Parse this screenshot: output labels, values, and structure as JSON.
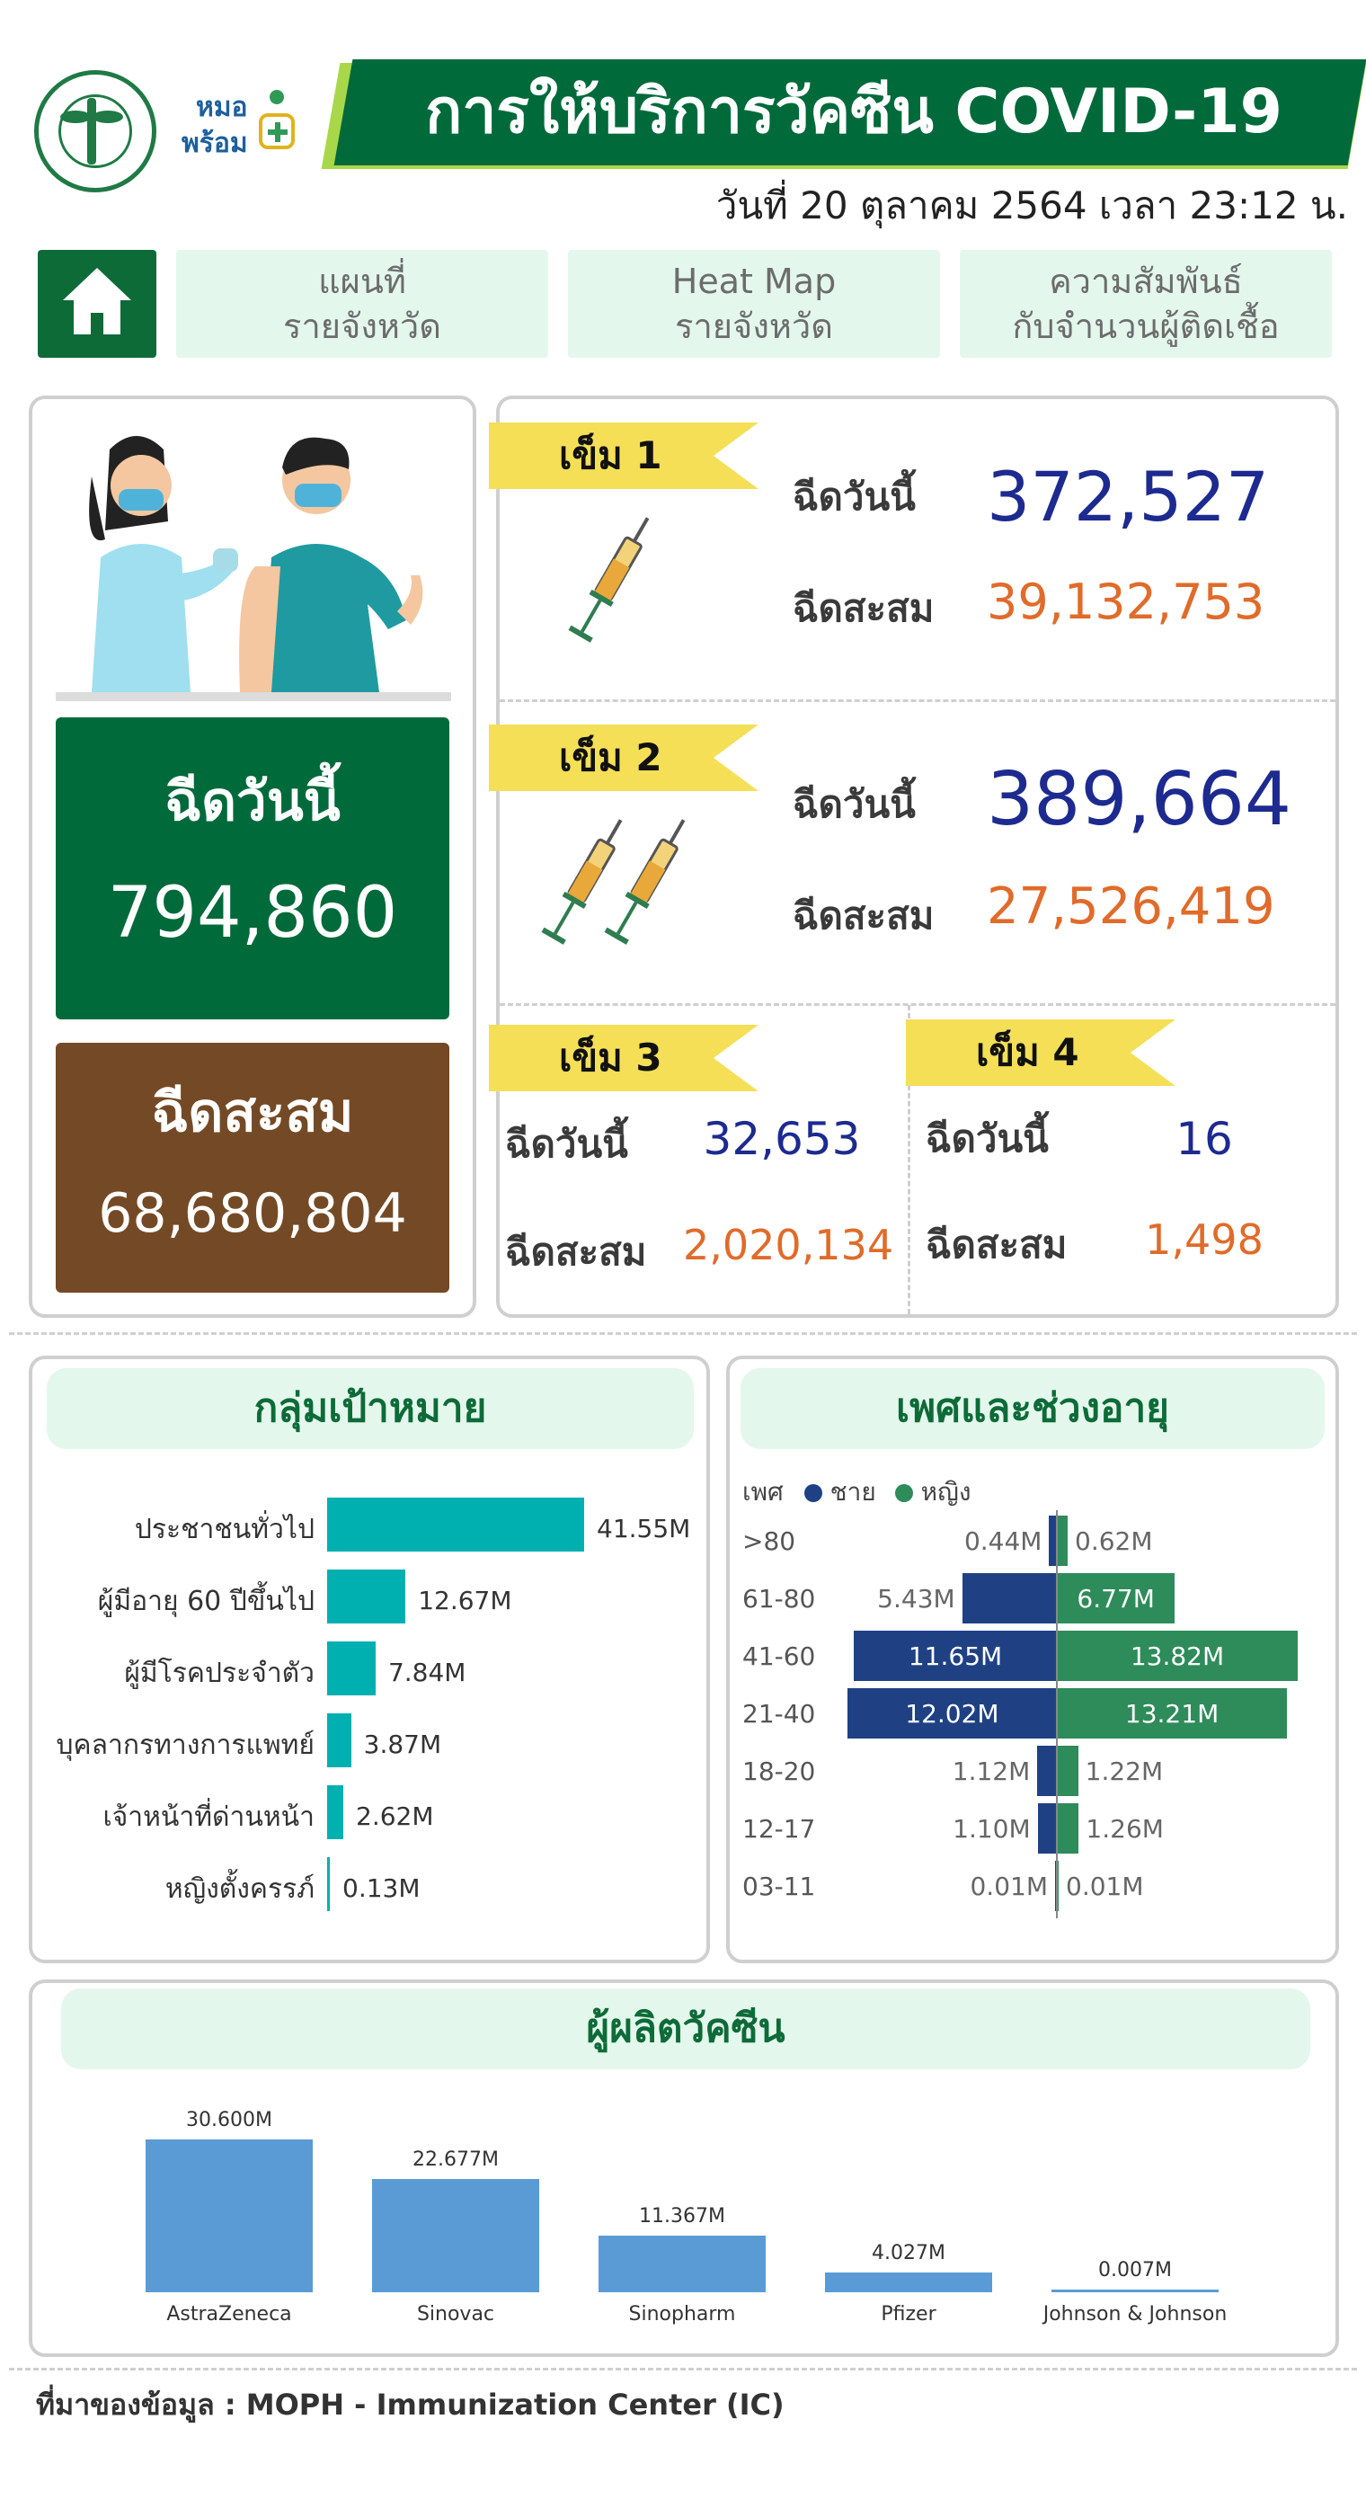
{
  "header": {
    "title": "การให้บริการวัคซีน COVID-19",
    "date": "วันที่ 20 ตุลาคม 2564 เวลา 23:12 น.",
    "brand_top": "หมอ",
    "brand_bottom": "พร้อม"
  },
  "nav": [
    {
      "line1": "แผนที่",
      "line2": "รายจังหวัด"
    },
    {
      "line1": "Heat Map",
      "line2": "รายจังหวัด"
    },
    {
      "line1": "ความสัมพันธ์",
      "line2": "กับจำนวนผู้ติดเชื้อ"
    }
  ],
  "summary": {
    "today_label": "ฉีดวันนี้",
    "today_value": "794,860",
    "total_label": "ฉีดสะสม",
    "total_value": "68,680,804"
  },
  "doses": [
    {
      "tag": "เข็ม 1",
      "today_label": "ฉีดวันนี้",
      "today": "372,527",
      "total_label": "ฉีดสะสม",
      "total": "39,132,753"
    },
    {
      "tag": "เข็ม 2",
      "today_label": "ฉีดวันนี้",
      "today": "389,664",
      "total_label": "ฉีดสะสม",
      "total": "27,526,419"
    },
    {
      "tag": "เข็ม 3",
      "today_label": "ฉีดวันนี้",
      "today": "32,653",
      "total_label": "ฉีดสะสม",
      "total": "2,020,134"
    },
    {
      "tag": "เข็ม 4",
      "today_label": "ฉีดวันนี้",
      "today": "16",
      "total_label": "ฉีดสะสม",
      "total": "1,498"
    }
  ],
  "colors": {
    "green": "#006a3b",
    "brown": "#744a26",
    "teal": "#00b0b0",
    "male": "#1f4184",
    "female": "#2e8b5a",
    "vaccine": "#5b9bd5",
    "blue_num": "#1d2a8f",
    "orange_num": "#e06b2a"
  },
  "chart_data": [
    {
      "type": "bar",
      "title": "กลุ่มเป้าหมาย",
      "orientation": "horizontal",
      "categories": [
        "ประชาชนทั่วไป",
        "ผู้มีอายุ 60 ปีขึ้นไป",
        "ผู้มีโรคประจำตัว",
        "บุคลากรทางการแพทย์",
        "เจ้าหน้าที่ด่านหน้า",
        "หญิงตั้งครรภ์"
      ],
      "values": [
        41.55,
        12.67,
        7.84,
        3.87,
        2.62,
        0.13
      ],
      "value_labels": [
        "41.55M",
        "12.67M",
        "7.84M",
        "3.87M",
        "2.62M",
        "0.13M"
      ],
      "xlim": [
        0,
        41.55
      ]
    },
    {
      "type": "bar",
      "title": "เพศและช่วงอายุ",
      "orientation": "diverging",
      "legend_title": "เพศ",
      "categories": [
        ">80",
        "61-80",
        "41-60",
        "21-40",
        "18-20",
        "12-17",
        "03-11"
      ],
      "series": [
        {
          "name": "ชาย",
          "values": [
            0.44,
            5.43,
            11.65,
            12.02,
            1.12,
            1.1,
            0.01
          ],
          "labels": [
            "0.44M",
            "5.43M",
            "11.65M",
            "12.02M",
            "1.12M",
            "1.10M",
            "0.01M"
          ]
        },
        {
          "name": "หญิง",
          "values": [
            0.62,
            6.77,
            13.82,
            13.21,
            1.22,
            1.26,
            0.01
          ],
          "labels": [
            "0.62M",
            "6.77M",
            "13.82M",
            "13.21M",
            "1.22M",
            "1.26M",
            "0.01M"
          ]
        }
      ],
      "legend_position": "top-left"
    },
    {
      "type": "bar",
      "title": "ผู้ผลิตวัคซีน",
      "orientation": "vertical",
      "categories": [
        "AstraZeneca",
        "Sinovac",
        "Sinopharm",
        "Pfizer",
        "Johnson & Johnson"
      ],
      "values": [
        30.6,
        22.677,
        11.367,
        4.027,
        0.007
      ],
      "value_labels": [
        "30.600M",
        "22.677M",
        "11.367M",
        "4.027M",
        "0.007M"
      ],
      "ylim": [
        0,
        30.6
      ]
    }
  ],
  "footer": "ที่มาของข้อมูล : MOPH - Immunization Center (IC)"
}
